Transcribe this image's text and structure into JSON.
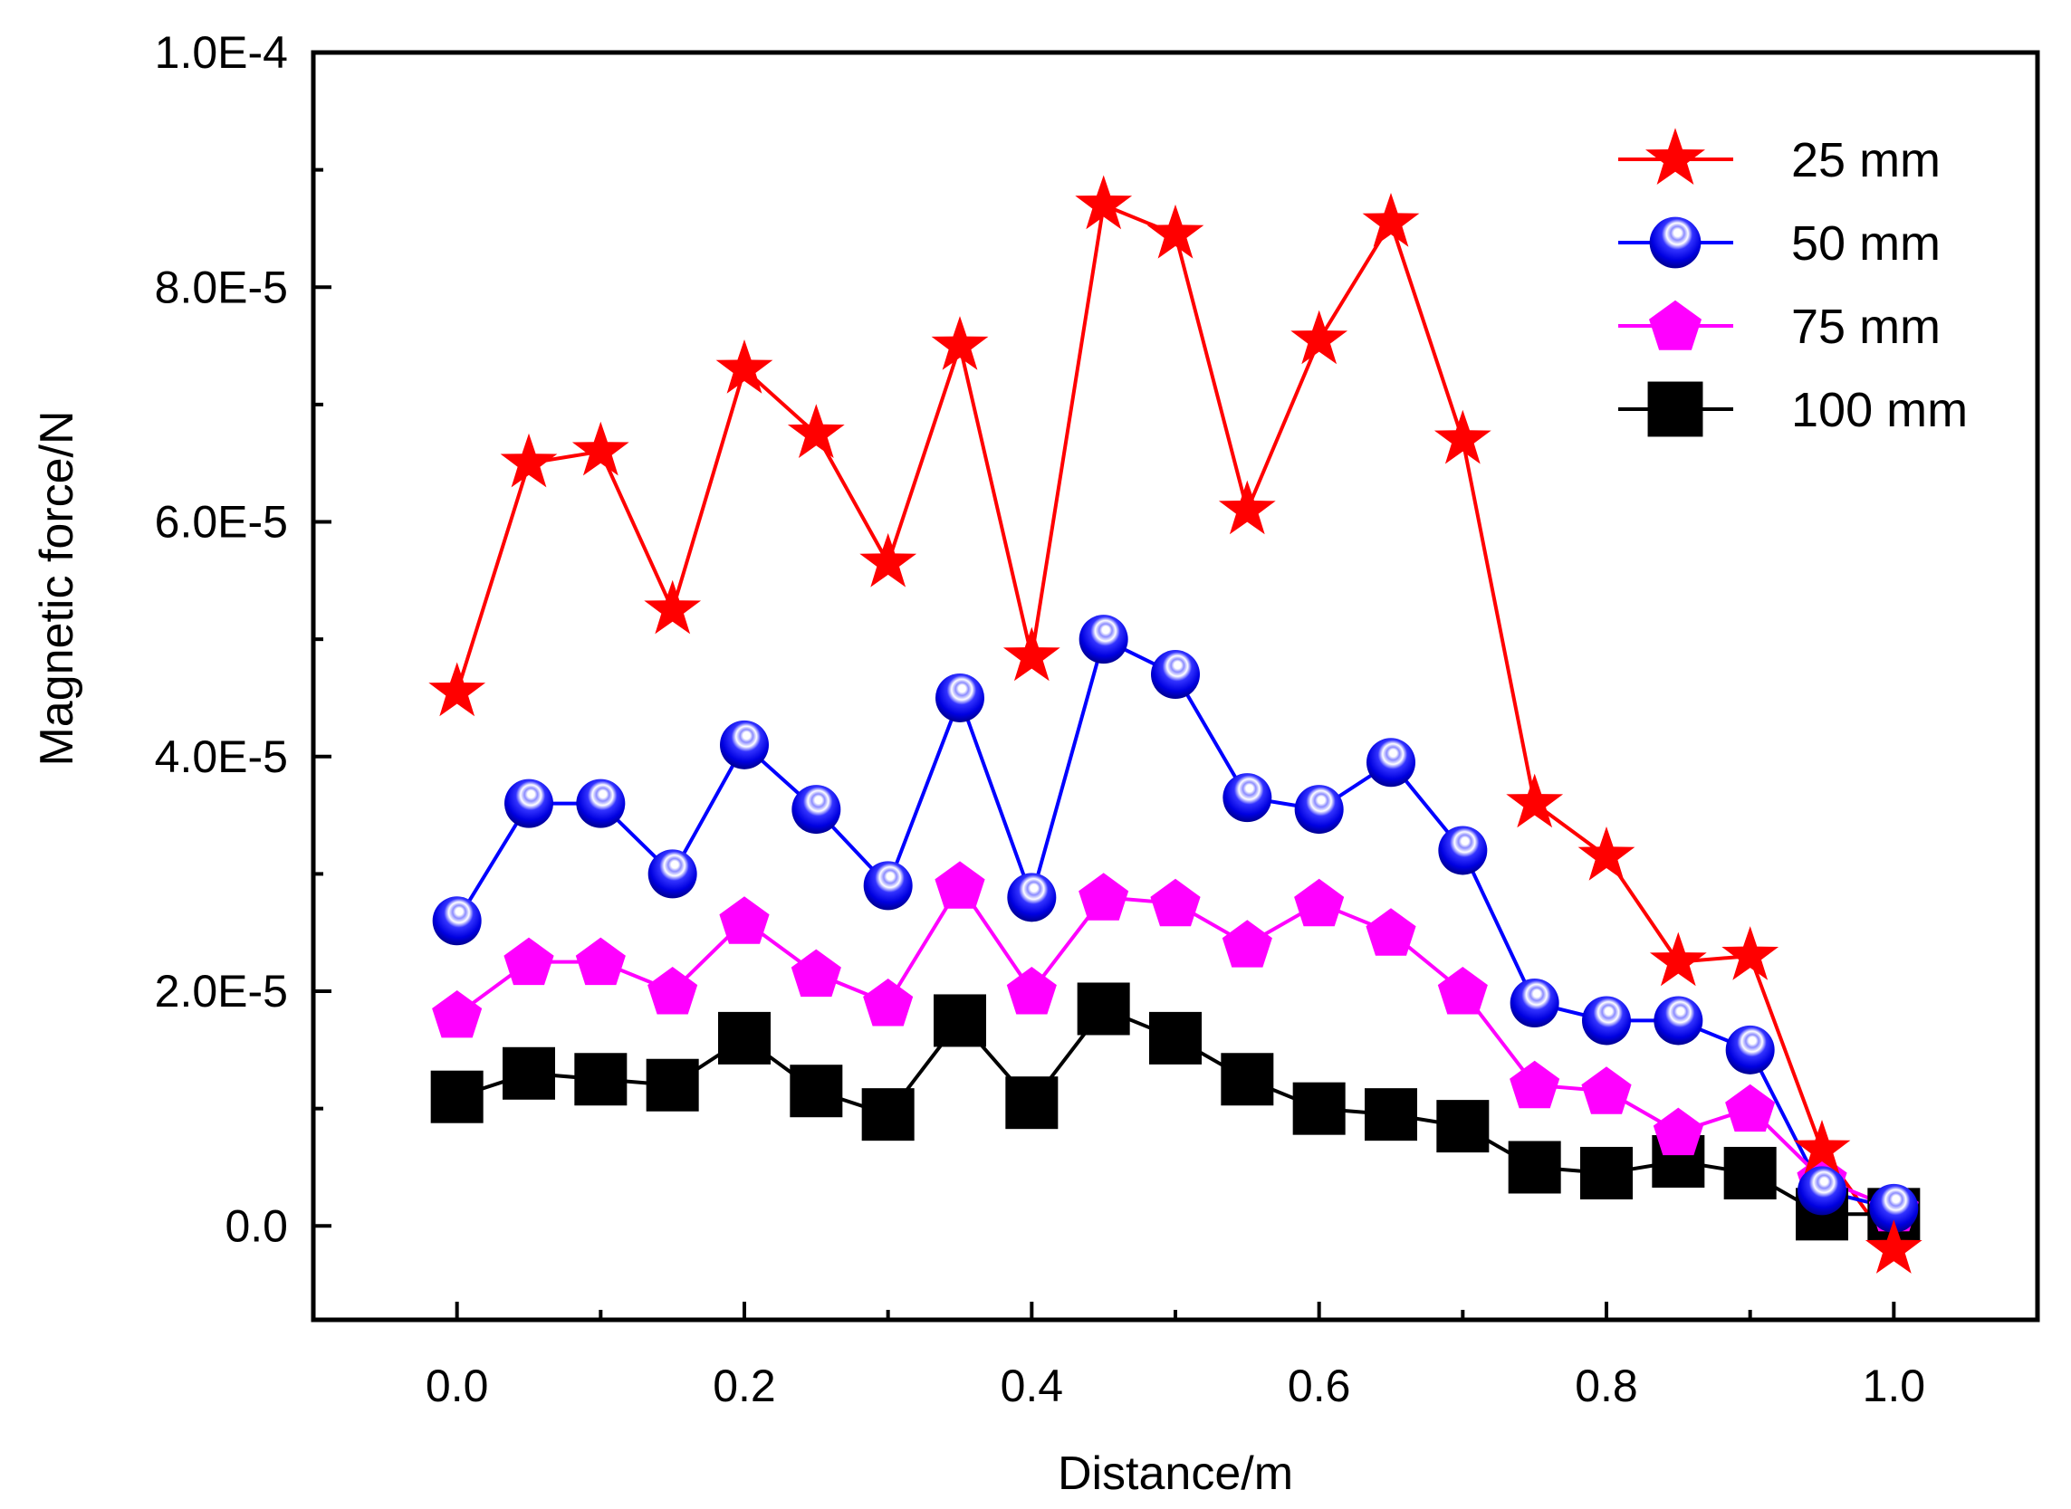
{
  "chart_data": {
    "type": "scatter",
    "title": "",
    "xlabel": "Distance/m",
    "ylabel": "Magnetic force/N",
    "xlim": [
      -0.1,
      1.1
    ],
    "ylim": [
      -8e-06,
      0.0001
    ],
    "xticks": [
      0.0,
      0.2,
      0.4,
      0.6,
      0.8,
      1.0
    ],
    "xtick_labels": [
      "0.0",
      "0.2",
      "0.4",
      "0.6",
      "0.8",
      "1.0"
    ],
    "yticks": [
      0,
      2e-05,
      4e-05,
      6e-05,
      8e-05,
      0.0001
    ],
    "ytick_labels": [
      "0.0",
      "2.0E-5",
      "4.0E-5",
      "6.0E-5",
      "8.0E-5",
      "1.0E-4"
    ],
    "grid": false,
    "legend_position": "top-right",
    "x": [
      0.0,
      0.05,
      0.1,
      0.15,
      0.2,
      0.25,
      0.3,
      0.35,
      0.4,
      0.45,
      0.5,
      0.55,
      0.6,
      0.65,
      0.7,
      0.75,
      0.8,
      0.85,
      0.9,
      0.95,
      1.0
    ],
    "series": [
      {
        "name": "25 mm",
        "color": "#ff0000",
        "marker": "star",
        "values": [
          4.55e-05,
          6.5e-05,
          6.6e-05,
          5.25e-05,
          7.3e-05,
          6.75e-05,
          5.65e-05,
          7.5e-05,
          4.85e-05,
          8.7e-05,
          8.45e-05,
          6.1e-05,
          7.55e-05,
          8.55e-05,
          6.7e-05,
          3.6e-05,
          3.15e-05,
          2.25e-05,
          2.3e-05,
          6.5e-06,
          -2e-06
        ]
      },
      {
        "name": "50 mm",
        "color": "#0000ff",
        "marker": "sphere",
        "values": [
          2.6e-05,
          3.6e-05,
          3.6e-05,
          3e-05,
          4.1e-05,
          3.55e-05,
          2.9e-05,
          4.5e-05,
          2.8e-05,
          5e-05,
          4.7e-05,
          3.65e-05,
          3.55e-05,
          3.95e-05,
          3.2e-05,
          1.9e-05,
          1.75e-05,
          1.75e-05,
          1.5e-05,
          3e-06,
          1.5e-06
        ]
      },
      {
        "name": "75 mm",
        "color": "#ff00ff",
        "marker": "pentagon",
        "values": [
          1.8e-05,
          2.25e-05,
          2.25e-05,
          2e-05,
          2.6e-05,
          2.15e-05,
          1.9e-05,
          2.9e-05,
          2e-05,
          2.8e-05,
          2.75e-05,
          2.4e-05,
          2.75e-05,
          2.5e-05,
          2e-05,
          1.2e-05,
          1.15e-05,
          8e-06,
          1e-05,
          4e-06,
          1.5e-06
        ]
      },
      {
        "name": "100 mm",
        "color": "#000000",
        "marker": "square",
        "values": [
          1.1e-05,
          1.3e-05,
          1.25e-05,
          1.2e-05,
          1.6e-05,
          1.15e-05,
          9.5e-06,
          1.75e-05,
          1.05e-05,
          1.85e-05,
          1.6e-05,
          1.25e-05,
          1e-05,
          9.5e-06,
          8.5e-06,
          5e-06,
          4.5e-06,
          5.5e-06,
          4.5e-06,
          1e-06,
          1e-06
        ]
      }
    ]
  }
}
